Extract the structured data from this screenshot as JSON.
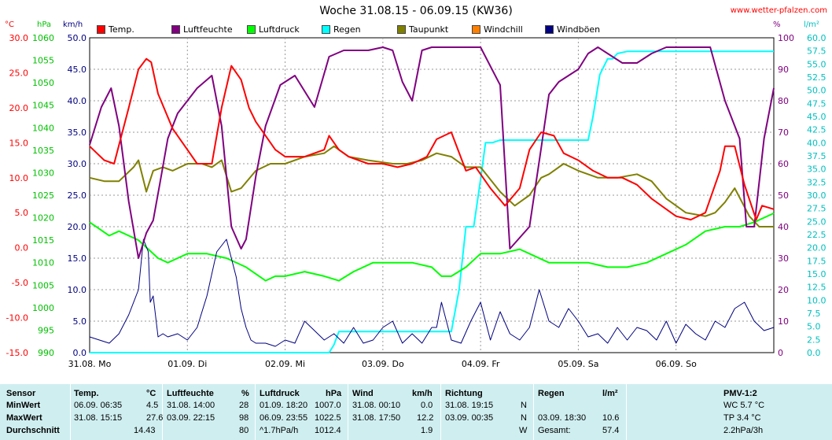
{
  "header": {
    "title": "Woche 31.08.15 - 06.09.15 (KW36)",
    "site": "www.wetter-pfalzen.com"
  },
  "units": {
    "temp": "°C",
    "pressure": "hPa",
    "wind": "km/h",
    "humidity": "%",
    "rain": "l/m²"
  },
  "legend": [
    {
      "label": "Temp.",
      "color": "#ff0000"
    },
    {
      "label": "Luftfeuchte",
      "color": "#800080"
    },
    {
      "label": "Luftdruck",
      "color": "#00ff00"
    },
    {
      "label": "Regen",
      "color": "#00ffff"
    },
    {
      "label": "Taupunkt",
      "color": "#808000"
    },
    {
      "label": "Windchill",
      "color": "#ff8000"
    },
    {
      "label": "Windböen",
      "color": "#000080"
    }
  ],
  "axes": {
    "temp_ticks": [
      "30.0",
      "25.0",
      "20.0",
      "15.0",
      "10.0",
      "5.0",
      "0.0",
      "-5.0",
      "-10.0",
      "-15.0"
    ],
    "pressure_ticks": [
      "1060",
      "1055",
      "1050",
      "1045",
      "1040",
      "1035",
      "1030",
      "1025",
      "1020",
      "1015",
      "1010",
      "1005",
      "1000",
      "995",
      "990"
    ],
    "wind_ticks": [
      "50.0",
      "45.0",
      "40.0",
      "35.0",
      "30.0",
      "25.0",
      "20.0",
      "15.0",
      "10.0",
      "5.0",
      "0.0"
    ],
    "humidity_ticks": [
      "100",
      "90",
      "80",
      "70",
      "60",
      "50",
      "40",
      "30",
      "20",
      "10",
      "0"
    ],
    "rain_ticks": [
      "60.0",
      "57.5",
      "55.0",
      "52.5",
      "50.0",
      "47.5",
      "45.0",
      "42.5",
      "40.0",
      "37.5",
      "35.0",
      "32.5",
      "30.0",
      "27.5",
      "25.0",
      "22.5",
      "20.0",
      "17.5",
      "15.0",
      "12.5",
      "10.0",
      "7.5",
      "5.0",
      "2.5",
      "0.0"
    ],
    "day_labels": [
      "31.08. Mo",
      "01.09. Di",
      "02.09. Mi",
      "03.09. Do",
      "04.09. Fr",
      "05.09. Sa",
      "06.09. So"
    ]
  },
  "chart_data": {
    "type": "line",
    "title": "Woche 31.08.15 - 06.09.15 (KW36)",
    "x_unit": "days since 31.08. 00:00",
    "xlim": [
      0,
      7
    ],
    "ylim_temp": [
      -15,
      30
    ],
    "ylim_pressure": [
      990,
      1060
    ],
    "ylim_wind": [
      0,
      50
    ],
    "ylim_humidity": [
      0,
      100
    ],
    "ylim_rain": [
      0,
      60
    ],
    "grid": true,
    "series": [
      {
        "name": "Temp.",
        "axis": "temp",
        "color": "#ff0000",
        "x": [
          0,
          0.15,
          0.25,
          0.4,
          0.5,
          0.58,
          0.63,
          0.7,
          0.85,
          1.0,
          1.1,
          1.25,
          1.35,
          1.45,
          1.55,
          1.63,
          1.7,
          1.8,
          1.9,
          2.0,
          2.2,
          2.4,
          2.45,
          2.55,
          2.65,
          2.85,
          3.0,
          3.15,
          3.3,
          3.45,
          3.55,
          3.7,
          3.85,
          3.95,
          4.1,
          4.25,
          4.4,
          4.5,
          4.62,
          4.75,
          4.85,
          5.0,
          5.15,
          5.3,
          5.45,
          5.6,
          5.75,
          5.9,
          6.0,
          6.15,
          6.3,
          6.45,
          6.5,
          6.6,
          6.7,
          6.82,
          6.88,
          7.0
        ],
        "values": [
          14.5,
          12.5,
          12,
          20,
          25.5,
          27,
          26.5,
          22,
          17,
          14,
          12,
          12,
          20,
          26,
          24,
          20,
          18,
          16,
          14,
          13,
          13,
          14,
          16,
          14,
          13,
          12,
          12,
          11.5,
          12,
          13,
          15.5,
          16.5,
          11,
          11.5,
          8.5,
          6,
          8.5,
          14,
          16.5,
          16,
          13.5,
          12.5,
          11,
          10,
          10,
          9,
          7,
          5.5,
          4.5,
          4,
          5,
          11,
          14.5,
          14.5,
          9,
          4,
          6,
          5.5
        ]
      },
      {
        "name": "Luftfeuchte",
        "axis": "humidity",
        "color": "#800080",
        "x": [
          0,
          0.12,
          0.22,
          0.3,
          0.4,
          0.5,
          0.58,
          0.65,
          0.72,
          0.8,
          0.9,
          1.0,
          1.1,
          1.25,
          1.35,
          1.45,
          1.55,
          1.6,
          1.7,
          1.8,
          1.95,
          2.1,
          2.3,
          2.45,
          2.6,
          2.7,
          2.85,
          3.0,
          3.1,
          3.2,
          3.3,
          3.4,
          3.5,
          3.65,
          3.8,
          4.0,
          4.2,
          4.3,
          4.5,
          4.62,
          4.7,
          4.8,
          4.9,
          5.0,
          5.1,
          5.2,
          5.3,
          5.45,
          5.6,
          5.75,
          5.9,
          6.1,
          6.35,
          6.5,
          6.65,
          6.72,
          6.8,
          6.9,
          7.0
        ],
        "values": [
          66,
          78,
          84,
          72,
          48,
          30,
          38,
          42,
          54,
          68,
          76,
          80,
          84,
          88,
          72,
          40,
          33,
          36,
          56,
          72,
          85,
          88,
          78,
          94,
          96,
          96,
          96,
          97,
          96,
          86,
          80,
          96,
          97,
          97,
          97,
          97,
          85,
          33,
          40,
          65,
          82,
          86,
          88,
          90,
          95,
          97,
          95,
          92,
          92,
          95,
          97,
          97,
          97,
          80,
          68,
          40,
          40,
          68,
          84
        ]
      },
      {
        "name": "Luftdruck",
        "axis": "pressure",
        "color": "#00ff00",
        "x": [
          0,
          0.2,
          0.3,
          0.5,
          0.7,
          0.8,
          0.9,
          1.0,
          1.2,
          1.4,
          1.6,
          1.8,
          1.9,
          2.0,
          2.2,
          2.4,
          2.55,
          2.7,
          2.9,
          3.1,
          3.3,
          3.5,
          3.6,
          3.7,
          3.85,
          4.0,
          4.2,
          4.4,
          4.5,
          4.7,
          4.9,
          5.1,
          5.3,
          5.5,
          5.7,
          5.9,
          6.1,
          6.3,
          6.5,
          6.65,
          6.8,
          7.0
        ],
        "values": [
          1019,
          1016,
          1017,
          1015,
          1011,
          1010,
          1011,
          1012,
          1012,
          1011,
          1009,
          1006,
          1007,
          1007,
          1008,
          1007,
          1006,
          1008,
          1010,
          1010,
          1010,
          1009,
          1007,
          1007,
          1009,
          1012,
          1012,
          1013,
          1012,
          1010,
          1010,
          1010,
          1009,
          1009,
          1010,
          1012,
          1014,
          1017,
          1018,
          1018,
          1019,
          1021
        ]
      },
      {
        "name": "Regen",
        "axis": "rain",
        "color": "#00ffff",
        "x": [
          0,
          2.45,
          2.5,
          2.55,
          2.6,
          3.7,
          3.78,
          3.85,
          3.93,
          4.0,
          4.05,
          4.12,
          4.2,
          5.1,
          5.15,
          5.22,
          5.3,
          5.35,
          5.4,
          5.5,
          7.0
        ],
        "values": [
          0,
          0,
          1.5,
          4,
          4,
          4,
          12,
          24,
          24,
          33,
          40,
          40,
          40.5,
          40.5,
          45,
          53,
          56,
          56,
          57,
          57.4,
          57.4
        ]
      },
      {
        "name": "Taupunkt",
        "axis": "temp",
        "color": "#808000",
        "x": [
          0,
          0.15,
          0.3,
          0.45,
          0.5,
          0.58,
          0.65,
          0.75,
          0.85,
          1.0,
          1.15,
          1.25,
          1.35,
          1.45,
          1.55,
          1.7,
          1.85,
          2.0,
          2.2,
          2.4,
          2.5,
          2.65,
          2.85,
          3.1,
          3.25,
          3.4,
          3.55,
          3.7,
          3.85,
          4.0,
          4.2,
          4.35,
          4.5,
          4.62,
          4.7,
          4.85,
          5.0,
          5.2,
          5.4,
          5.6,
          5.75,
          5.9,
          6.1,
          6.3,
          6.4,
          6.5,
          6.6,
          6.75,
          6.85,
          7.0
        ],
        "values": [
          10,
          9.5,
          9.5,
          11.5,
          12.5,
          8,
          11,
          11.5,
          11,
          12,
          12,
          11.5,
          12.5,
          8,
          8.5,
          11,
          12,
          12,
          13,
          13.5,
          14.5,
          13,
          12.5,
          12,
          12,
          12.5,
          13.5,
          13,
          11.5,
          11.5,
          8,
          6,
          7.5,
          10,
          10.5,
          12,
          11,
          10,
          10,
          10.5,
          9.5,
          7,
          5,
          4.5,
          5,
          6.5,
          8.5,
          4.5,
          3,
          3
        ]
      },
      {
        "name": "Windböen",
        "axis": "wind",
        "color": "#000080",
        "x": [
          0,
          0.1,
          0.2,
          0.3,
          0.4,
          0.5,
          0.55,
          0.6,
          0.62,
          0.65,
          0.7,
          0.75,
          0.8,
          0.9,
          1.0,
          1.1,
          1.2,
          1.3,
          1.4,
          1.5,
          1.55,
          1.6,
          1.65,
          1.7,
          1.8,
          1.9,
          2.0,
          2.1,
          2.2,
          2.3,
          2.4,
          2.5,
          2.6,
          2.7,
          2.8,
          2.9,
          3.0,
          3.1,
          3.2,
          3.3,
          3.4,
          3.5,
          3.55,
          3.6,
          3.7,
          3.8,
          3.9,
          4.0,
          4.1,
          4.2,
          4.3,
          4.4,
          4.5,
          4.6,
          4.7,
          4.8,
          4.9,
          5.0,
          5.1,
          5.2,
          5.3,
          5.4,
          5.5,
          5.6,
          5.7,
          5.8,
          5.9,
          6.0,
          6.1,
          6.2,
          6.3,
          6.4,
          6.5,
          6.6,
          6.7,
          6.8,
          6.9,
          7.0
        ],
        "values": [
          2.5,
          2,
          1.5,
          3,
          6,
          10,
          18,
          16,
          8,
          9,
          2.5,
          3,
          2.5,
          3,
          2,
          4,
          9,
          16,
          18,
          12,
          7,
          4,
          2,
          1.5,
          1.5,
          1,
          2,
          1.5,
          5,
          3.5,
          2,
          3,
          1.5,
          4,
          1.5,
          2,
          4,
          5,
          1.5,
          3,
          1.5,
          4,
          4,
          8,
          2,
          1.5,
          5,
          8,
          2,
          6.5,
          3,
          2,
          4,
          10,
          5,
          4,
          7,
          5,
          2.5,
          3,
          1.5,
          4,
          2,
          4,
          3.5,
          2,
          5,
          1.5,
          4.5,
          3,
          2,
          5,
          4,
          7,
          8,
          5,
          3.5,
          4
        ]
      }
    ]
  },
  "stats": {
    "headers": {
      "sensor": "Sensor",
      "temp": "Temp.",
      "temp_unit": "°C",
      "hum": "Luftfeuchte",
      "hum_unit": "%",
      "press": "Luftdruck",
      "press_unit": "hPa",
      "wind": "Wind",
      "wind_unit": "km/h",
      "dir": "Richtung",
      "rain": "Regen",
      "rain_unit": "l/m²",
      "pmv": "PMV-1:2"
    },
    "rows": [
      {
        "label": "MinWert",
        "temp_t": "06.09.  06:35",
        "temp_v": "4.5",
        "hum_t": "31.08.  14:00",
        "hum_v": "28",
        "press_t": "01.09.  18:20",
        "press_v": "1007.0",
        "wind_t": "31.08.  00:10",
        "wind_v": "0.0",
        "dir_t": "31.08.  19:15",
        "dir_v": "N",
        "rain_t": "",
        "rain_v": "",
        "pmv": "WC 5.7 °C"
      },
      {
        "label": "MaxWert",
        "temp_t": "31.08.  15:15",
        "temp_v": "27.6",
        "hum_t": "03.09.  22:15",
        "hum_v": "98",
        "press_t": "06.09.  23:55",
        "press_v": "1022.5",
        "wind_t": "31.08.  17:50",
        "wind_v": "12.2",
        "dir_t": "03.09.  00:35",
        "dir_v": "N",
        "rain_t": "03.09.  18:30",
        "rain_v": "10.6",
        "pmv": "TP 3.4 °C"
      },
      {
        "label": "Durchschnitt",
        "temp_t": "",
        "temp_v": "14.43",
        "hum_t": "",
        "hum_v": "80",
        "press_t": "^1.7hPa/h",
        "press_v": "1012.4",
        "wind_t": "",
        "wind_v": "1.9",
        "dir_t": "",
        "dir_v": "W",
        "rain_t": "Gesamt:",
        "rain_v": "57.4",
        "pmv": "2.2hPa/3h"
      }
    ]
  }
}
